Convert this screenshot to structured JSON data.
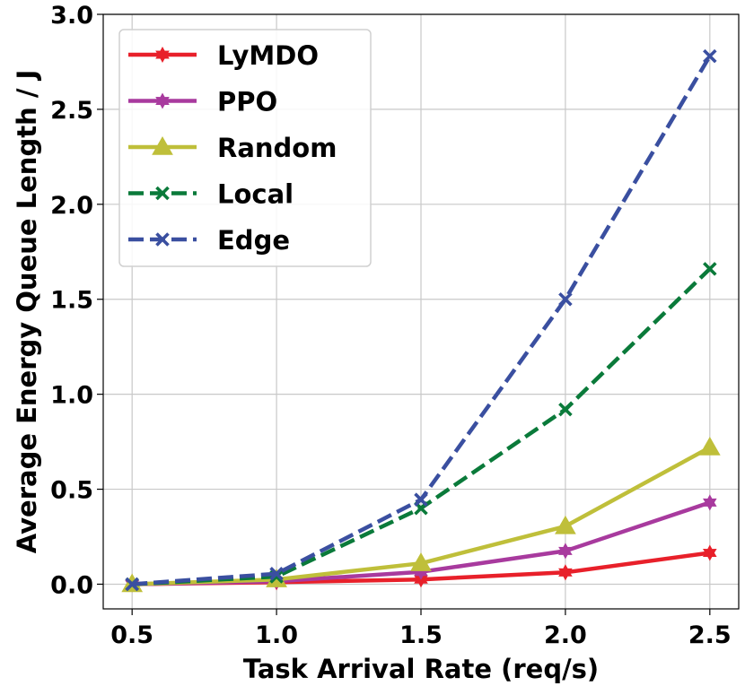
{
  "chart_data": {
    "type": "line",
    "title": "",
    "xlabel": "Task Arrival Rate (req/s)",
    "ylabel": "Average Energy Queue Length / J",
    "x": [
      0.5,
      1.0,
      1.5,
      2.0,
      2.5
    ],
    "x_ticks": [
      "0.5",
      "1.0",
      "1.5",
      "2.0",
      "2.5"
    ],
    "y_ticks": [
      "0.0",
      "0.5",
      "1.0",
      "1.5",
      "2.0",
      "2.5",
      "3.0"
    ],
    "y_tick_values": [
      0.0,
      0.5,
      1.0,
      1.5,
      2.0,
      2.5,
      3.0
    ],
    "xlim": [
      0.4,
      2.6
    ],
    "ylim": [
      -0.13,
      3.0
    ],
    "grid": true,
    "legend_position": "top-left",
    "series": [
      {
        "name": "LyMDO",
        "values": [
          0.0,
          0.01,
          0.025,
          0.062,
          0.165
        ],
        "color": "#e8202a",
        "dash": "solid",
        "marker": "star"
      },
      {
        "name": "PPO",
        "values": [
          0.0,
          0.015,
          0.065,
          0.175,
          0.43
        ],
        "color": "#a83a9e",
        "dash": "solid",
        "marker": "star"
      },
      {
        "name": "Random",
        "values": [
          0.0,
          0.025,
          0.11,
          0.305,
          0.72
        ],
        "color": "#bfbf3a",
        "dash": "solid",
        "marker": "triangle"
      },
      {
        "name": "Local",
        "values": [
          0.0,
          0.04,
          0.4,
          0.92,
          1.66
        ],
        "color": "#0a7a3a",
        "dash": "dashed",
        "marker": "x"
      },
      {
        "name": "Edge",
        "values": [
          0.0,
          0.055,
          0.445,
          1.5,
          2.78
        ],
        "color": "#3a4fa0",
        "dash": "dashed",
        "marker": "x"
      }
    ]
  }
}
